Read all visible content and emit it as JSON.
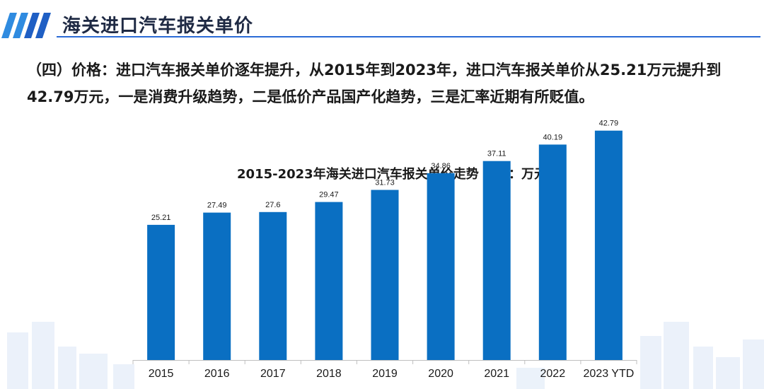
{
  "header": {
    "title": "海关进口汽车报关单价"
  },
  "description": {
    "text": "（四）价格：进口汽车报关单价逐年提升，从2015年到2023年，进口汽车报关单价从25.21万元提升到42.79万元，一是消费升级趋势，二是低价产品国产化趋势，三是汇率近期有所贬值。"
  },
  "colors": {
    "bar": "#0a6fc2",
    "accent": "#2b6bd6",
    "skyline": "#dbe7f6"
  },
  "chart_data": {
    "type": "bar",
    "title": "2015-2023年海关进口汽车报关单价走势  单位：万元",
    "categories": [
      "2015",
      "2016",
      "2017",
      "2018",
      "2019",
      "2020",
      "2021",
      "2022",
      "2023 YTD"
    ],
    "values": [
      25.21,
      27.49,
      27.6,
      29.47,
      31.73,
      34.86,
      37.11,
      40.19,
      42.79
    ],
    "value_labels": [
      "25.21",
      "27.49",
      "27.6",
      "29.47",
      "31.73",
      "34.86",
      "37.11",
      "40.19",
      "42.79"
    ],
    "xlabel": "",
    "ylabel": "",
    "ylim": [
      0,
      46
    ],
    "grid": false,
    "legend": "none"
  }
}
